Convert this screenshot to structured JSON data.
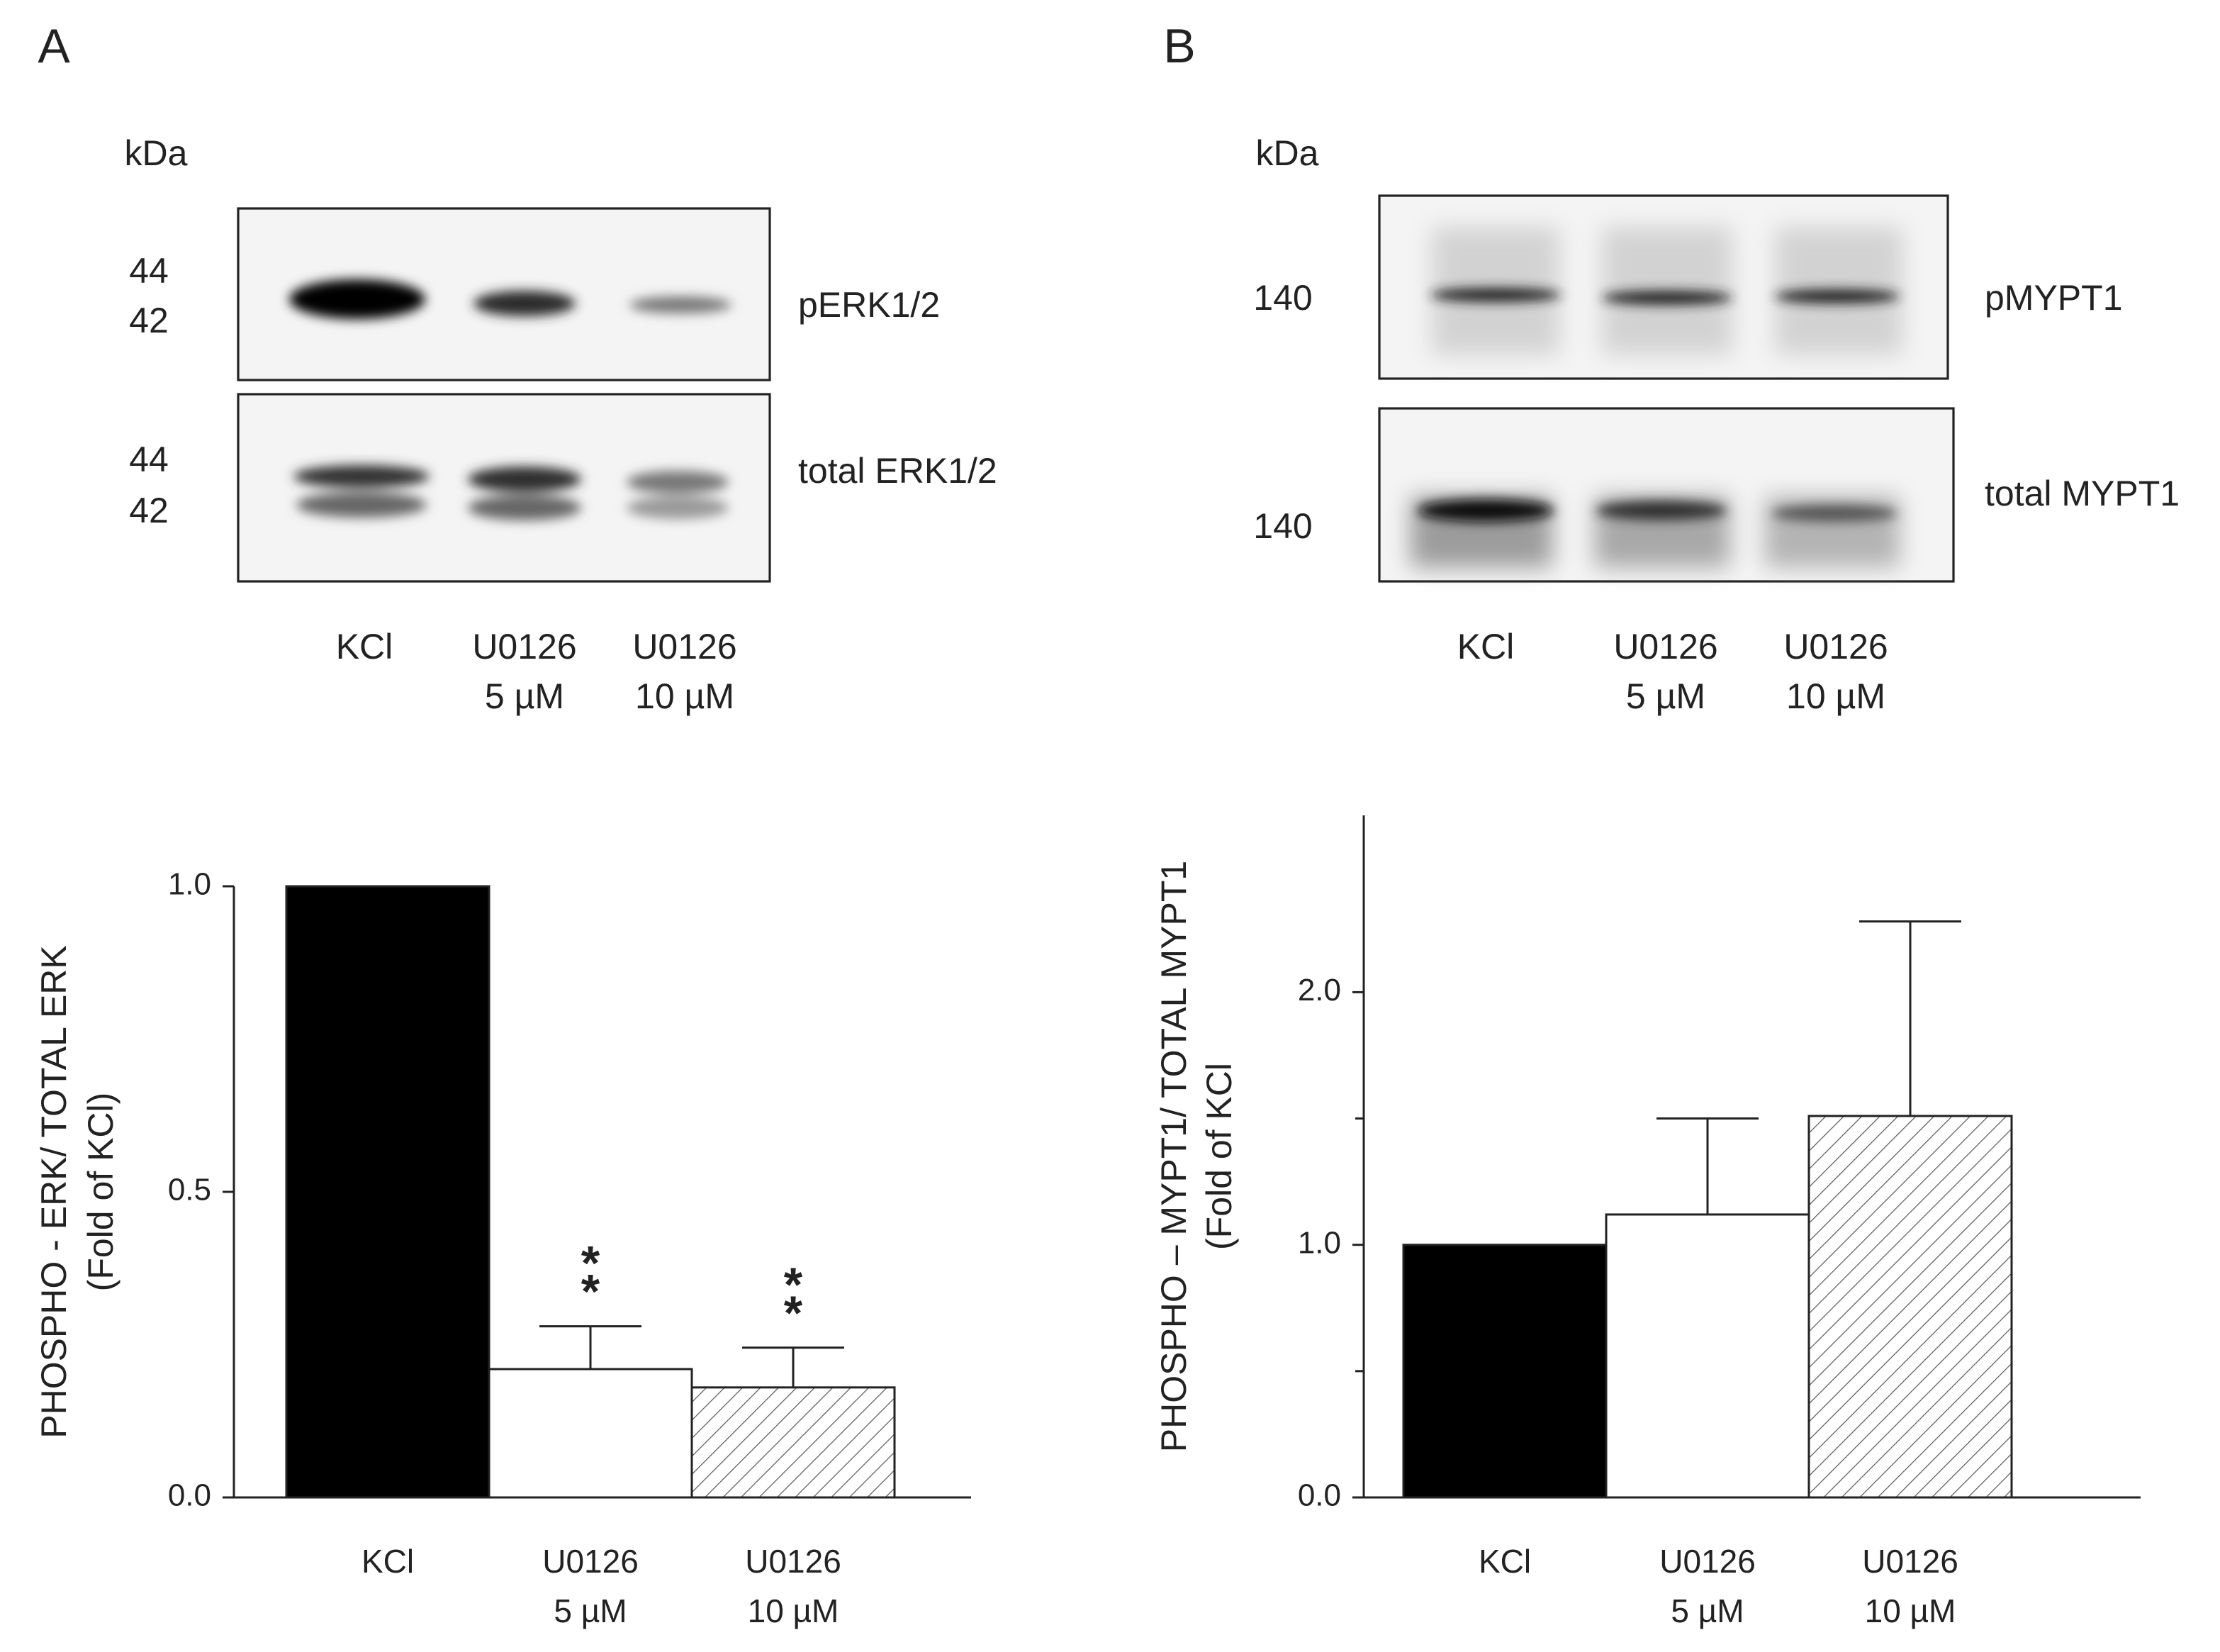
{
  "panels": [
    {
      "letter": "A",
      "kda": "kDa",
      "rows": [
        {
          "markers": [
            "44",
            "42"
          ],
          "label": "pERK1/2"
        },
        {
          "markers": [
            "44",
            "42"
          ],
          "label": "total ERK1/2"
        }
      ],
      "lanes": [
        "KCl",
        "U0126\n5 µM",
        "U0126\n10 µM"
      ]
    },
    {
      "letter": "B",
      "kda": "kDa",
      "rows": [
        {
          "markers": [
            "140"
          ],
          "label": "pMYPT1"
        },
        {
          "markers": [
            "140"
          ],
          "label": "total MYPT1"
        }
      ],
      "lanes": [
        "KCl",
        "U0126\n5 µM",
        "U0126\n10 µM"
      ]
    }
  ],
  "chart_data": [
    {
      "type": "bar",
      "ylabel": [
        "PHOSPHO - ERK/ TOTAL ERK",
        "(Fold of KCl)"
      ],
      "categories": [
        "KCl",
        "U0126\n5 µM",
        "U0126\n10 µM"
      ],
      "values": [
        1.0,
        0.21,
        0.18
      ],
      "errors": [
        null,
        0.07,
        0.065
      ],
      "colors": [
        "#000000",
        "#ffffff",
        "#ffffff"
      ],
      "hatch": [
        false,
        false,
        true
      ],
      "annotations": [
        {
          "text": "**",
          "category": 1
        },
        {
          "text": "**",
          "category": 2
        }
      ],
      "ylim": [
        0,
        1.0
      ],
      "yticks": [
        {
          "value": 0,
          "label": "0.0"
        },
        {
          "value": 0.5,
          "label": "0.5"
        },
        {
          "value": 1.0,
          "label": "1.0"
        }
      ]
    },
    {
      "type": "bar",
      "ylabel": [
        "PHOSPHO – MYPT1/ TOTAL MYPT1",
        "(Fold of KCl"
      ],
      "categories": [
        "KCl",
        "U0126\n5 µM",
        "U0126\n10 µM"
      ],
      "values": [
        1.0,
        1.12,
        1.51
      ],
      "errors": [
        null,
        0.38,
        0.77
      ],
      "colors": [
        "#000000",
        "#ffffff",
        "#ffffff"
      ],
      "hatch": [
        false,
        false,
        true
      ],
      "ylim": [
        0,
        2.7
      ],
      "yticks": [
        {
          "value": 0,
          "label": "0.0"
        },
        {
          "value": 1.0,
          "label": "1.0"
        },
        {
          "value": 2.0,
          "label": "2.0"
        }
      ],
      "minor_yticks": [
        0.5,
        1.5
      ]
    }
  ]
}
